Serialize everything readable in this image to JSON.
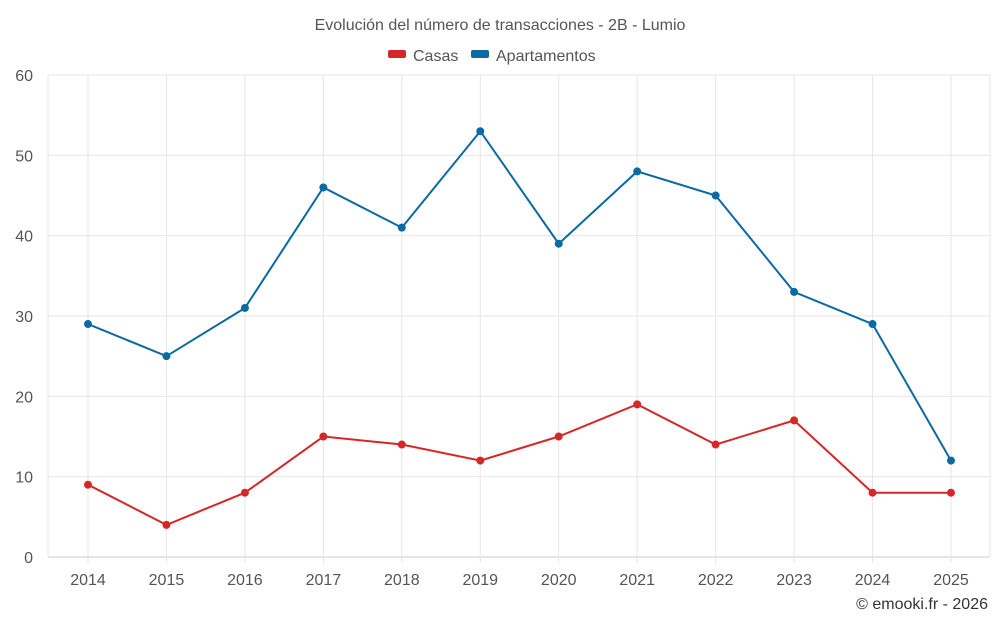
{
  "chart_data": {
    "type": "line",
    "title": "Evolución del número de transacciones - 2B - Lumio",
    "categories": [
      "2014",
      "2015",
      "2016",
      "2017",
      "2018",
      "2019",
      "2020",
      "2021",
      "2022",
      "2023",
      "2024",
      "2025"
    ],
    "series": [
      {
        "name": "Casas",
        "color": "#d62728",
        "values": [
          9,
          4,
          8,
          15,
          14,
          12,
          15,
          19,
          14,
          17,
          8,
          8
        ]
      },
      {
        "name": "Apartamentos",
        "color": "#0a6aa1",
        "values": [
          29,
          25,
          31,
          46,
          41,
          53,
          39,
          48,
          45,
          33,
          29,
          12
        ]
      }
    ],
    "xlabel": "",
    "ylabel": "",
    "ylim": [
      0,
      60
    ],
    "yticks": [
      0,
      10,
      20,
      30,
      40,
      50,
      60
    ],
    "grid": true,
    "legend_position": "top-center"
  },
  "footer": {
    "copyright": "© emooki.fr - 2026"
  }
}
